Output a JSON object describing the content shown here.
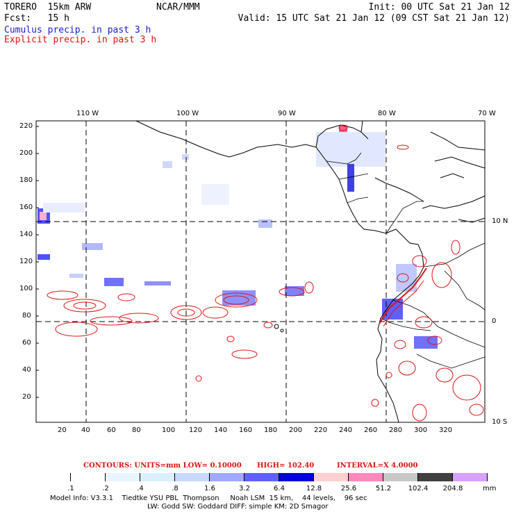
{
  "header": {
    "model": "TORERO  15km ARW",
    "org": "NCAR/MMM",
    "init": "Init: 00 UTC Sat 21 Jan 12",
    "fcst_label": "Fcst:   15 h",
    "valid": "Valid: 15 UTC Sat 21 Jan 12 (09 CST Sat 21 Jan 12)",
    "field1": "Cumulus precip. in past 3 h",
    "field2": "Explicit precip. in past 3 h"
  },
  "colors": {
    "cumulus_text": "#1a1acc",
    "explicit_text": "#e01010",
    "grid": "#000000",
    "coast": "#000000",
    "contour": "#e01010"
  },
  "map": {
    "lon_labels": [
      "110 W",
      "100 W",
      "90 W",
      "80 W",
      "70 W"
    ],
    "lat_labels": [
      "10 N",
      "0",
      "10 S"
    ],
    "y_ticks": [
      "220",
      "200",
      "180",
      "160",
      "140",
      "120",
      "100",
      "80",
      "60",
      "40",
      "20"
    ],
    "x_ticks": [
      "20",
      "40",
      "60",
      "80",
      "100",
      "120",
      "140",
      "160",
      "180",
      "200",
      "220",
      "240",
      "260",
      "280",
      "300",
      "320"
    ]
  },
  "contour_info": {
    "units": "CONTOURS:  UNITS=mm  LOW= 0.10000",
    "high": "HIGH=  102.40",
    "interval": "INTERVAL=X  4.0000"
  },
  "legend": {
    "unit": "mm",
    "labels": [
      ".1",
      ".2",
      ".4",
      ".8",
      "1.6",
      "3.2",
      "6.4",
      "12.8",
      "25.6",
      "51.2",
      "102.4",
      "204.8"
    ],
    "colors": [
      "#ffffff",
      "#ffffff",
      "#e8f4ff",
      "#d8f0ff",
      "#c8d8ff",
      "#a0a8ff",
      "#6060ff",
      "#0000dd",
      "#ffd0d0",
      "#ff88bb",
      "#c8c8c8",
      "#404040",
      "#d8a0ff"
    ]
  },
  "footer": {
    "line1": "Model Info: V3.3.1    Tiedtke YSU PBL  Thompson     Noah LSM  15 km,    44 levels,    96 sec",
    "line2": "LW: Godd SW: Goddard DIFF: simple KM: 2D Smagor"
  }
}
